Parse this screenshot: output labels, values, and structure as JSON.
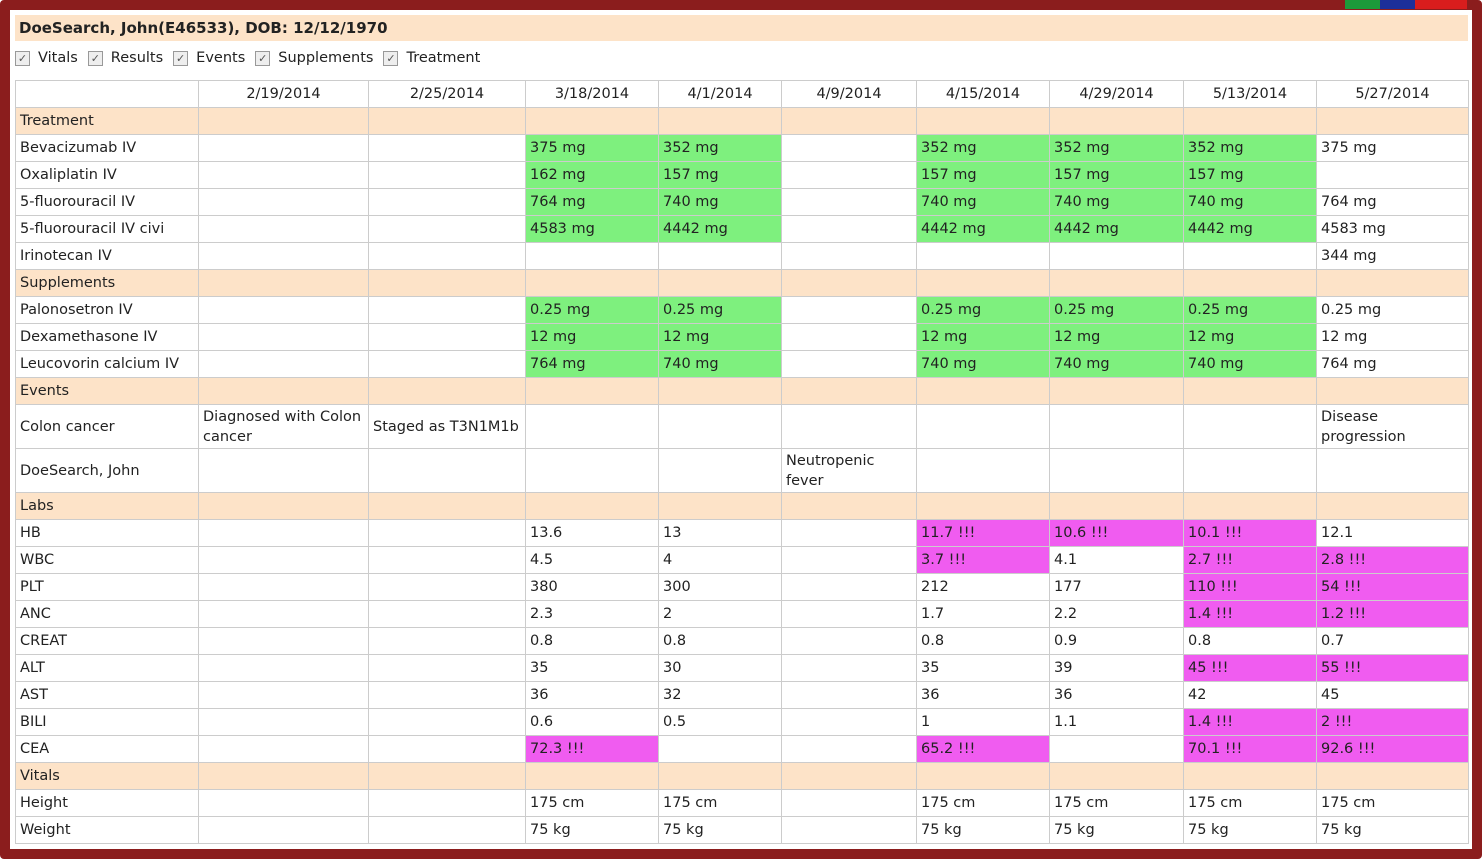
{
  "header": {
    "title": "DoeSearch, John(E46533), DOB: 12/12/1970"
  },
  "filters": [
    "Vitals",
    "Results",
    "Events",
    "Supplements",
    "Treatment"
  ],
  "table": {
    "columns": [
      "2/19/2014",
      "2/25/2014",
      "3/18/2014",
      "4/1/2014",
      "4/9/2014",
      "4/15/2014",
      "4/29/2014",
      "5/13/2014",
      "5/27/2014"
    ],
    "sections": [
      {
        "title": "Treatment",
        "rows": [
          {
            "label": "Bevacizumab IV",
            "cells": [
              null,
              null,
              "375 mg",
              "352 mg",
              null,
              "352 mg",
              "352 mg",
              "352 mg",
              "375 mg"
            ],
            "colors": [
              null,
              null,
              "#7ef07e",
              "#7ef07e",
              null,
              "#7ef07e",
              "#7ef07e",
              "#7ef07e",
              null
            ]
          },
          {
            "label": "Oxaliplatin IV",
            "cells": [
              null,
              null,
              "162 mg",
              "157 mg",
              null,
              "157 mg",
              "157 mg",
              "157 mg",
              null
            ],
            "colors": [
              null,
              null,
              "#7ef07e",
              "#7ef07e",
              null,
              "#7ef07e",
              "#7ef07e",
              "#7ef07e",
              null
            ]
          },
          {
            "label": "5-fluorouracil IV",
            "cells": [
              null,
              null,
              "764 mg",
              "740 mg",
              null,
              "740 mg",
              "740 mg",
              "740 mg",
              "764 mg"
            ],
            "colors": [
              null,
              null,
              "#7ef07e",
              "#7ef07e",
              null,
              "#7ef07e",
              "#7ef07e",
              "#7ef07e",
              null
            ]
          },
          {
            "label": "5-fluorouracil IV civi",
            "cells": [
              null,
              null,
              "4583 mg",
              "4442 mg",
              null,
              "4442 mg",
              "4442 mg",
              "4442 mg",
              "4583 mg"
            ],
            "colors": [
              null,
              null,
              "#7ef07e",
              "#7ef07e",
              null,
              "#7ef07e",
              "#7ef07e",
              "#7ef07e",
              null
            ]
          },
          {
            "label": "Irinotecan IV",
            "cells": [
              null,
              null,
              null,
              null,
              null,
              null,
              null,
              null,
              "344 mg"
            ],
            "colors": [
              null,
              null,
              null,
              null,
              null,
              null,
              null,
              null,
              null
            ]
          }
        ]
      },
      {
        "title": "Supplements",
        "rows": [
          {
            "label": "Palonosetron IV",
            "cells": [
              null,
              null,
              "0.25 mg",
              "0.25 mg",
              null,
              "0.25 mg",
              "0.25 mg",
              "0.25 mg",
              "0.25 mg"
            ],
            "colors": [
              null,
              null,
              "#7ef07e",
              "#7ef07e",
              null,
              "#7ef07e",
              "#7ef07e",
              "#7ef07e",
              null
            ]
          },
          {
            "label": "Dexamethasone IV",
            "cells": [
              null,
              null,
              "12 mg",
              "12 mg",
              null,
              "12 mg",
              "12 mg",
              "12 mg",
              "12 mg"
            ],
            "colors": [
              null,
              null,
              "#7ef07e",
              "#7ef07e",
              null,
              "#7ef07e",
              "#7ef07e",
              "#7ef07e",
              null
            ]
          },
          {
            "label": "Leucovorin calcium IV",
            "cells": [
              null,
              null,
              "764 mg",
              "740 mg",
              null,
              "740 mg",
              "740 mg",
              "740 mg",
              "764 mg"
            ],
            "colors": [
              null,
              null,
              "#7ef07e",
              "#7ef07e",
              null,
              "#7ef07e",
              "#7ef07e",
              "#7ef07e",
              null
            ]
          }
        ]
      },
      {
        "title": "Events",
        "rows": [
          {
            "label": "Colon cancer",
            "cells": [
              "Diagnosed with Colon cancer",
              "Staged as T3N1M1b",
              null,
              null,
              null,
              null,
              null,
              null,
              "Disease progression"
            ],
            "colors": [
              null,
              null,
              null,
              null,
              null,
              null,
              null,
              null,
              null
            ]
          },
          {
            "label": "DoeSearch, John",
            "cells": [
              null,
              null,
              null,
              null,
              "Neutropenic fever",
              null,
              null,
              null,
              null
            ],
            "colors": [
              null,
              null,
              null,
              null,
              null,
              null,
              null,
              null,
              null
            ]
          }
        ]
      },
      {
        "title": "Labs",
        "rows": [
          {
            "label": "HB",
            "cells": [
              null,
              null,
              "13.6",
              "13",
              null,
              "11.7 !!!",
              "10.6 !!!",
              "10.1 !!!",
              "12.1"
            ],
            "colors": [
              null,
              null,
              null,
              null,
              null,
              "#f05cf0",
              "#f05cf0",
              "#f05cf0",
              null
            ]
          },
          {
            "label": "WBC",
            "cells": [
              null,
              null,
              "4.5",
              "4",
              null,
              "3.7 !!!",
              "4.1",
              "2.7 !!!",
              "2.8 !!!"
            ],
            "colors": [
              null,
              null,
              null,
              null,
              null,
              "#f05cf0",
              null,
              "#f05cf0",
              "#f05cf0"
            ]
          },
          {
            "label": "PLT",
            "cells": [
              null,
              null,
              "380",
              "300",
              null,
              "212",
              "177",
              "110 !!!",
              "54 !!!"
            ],
            "colors": [
              null,
              null,
              null,
              null,
              null,
              null,
              null,
              "#f05cf0",
              "#f05cf0"
            ]
          },
          {
            "label": "ANC",
            "cells": [
              null,
              null,
              "2.3",
              "2",
              null,
              "1.7",
              "2.2",
              "1.4 !!!",
              "1.2 !!!"
            ],
            "colors": [
              null,
              null,
              null,
              null,
              null,
              null,
              null,
              "#f05cf0",
              "#f05cf0"
            ]
          },
          {
            "label": "CREAT",
            "cells": [
              null,
              null,
              "0.8",
              "0.8",
              null,
              "0.8",
              "0.9",
              "0.8",
              "0.7"
            ],
            "colors": [
              null,
              null,
              null,
              null,
              null,
              null,
              null,
              null,
              null
            ]
          },
          {
            "label": "ALT",
            "cells": [
              null,
              null,
              "35",
              "30",
              null,
              "35",
              "39",
              "45 !!!",
              "55 !!!"
            ],
            "colors": [
              null,
              null,
              null,
              null,
              null,
              null,
              null,
              "#f05cf0",
              "#f05cf0"
            ]
          },
          {
            "label": "AST",
            "cells": [
              null,
              null,
              "36",
              "32",
              null,
              "36",
              "36",
              "42",
              "45"
            ],
            "colors": [
              null,
              null,
              null,
              null,
              null,
              null,
              null,
              null,
              null
            ]
          },
          {
            "label": "BILI",
            "cells": [
              null,
              null,
              "0.6",
              "0.5",
              null,
              "1",
              "1.1",
              "1.4 !!!",
              "2 !!!"
            ],
            "colors": [
              null,
              null,
              null,
              null,
              null,
              null,
              null,
              "#f05cf0",
              "#f05cf0"
            ]
          },
          {
            "label": "CEA",
            "cells": [
              null,
              null,
              "72.3 !!!",
              null,
              null,
              "65.2 !!!",
              null,
              "70.1 !!!",
              "92.6 !!!"
            ],
            "colors": [
              null,
              null,
              "#f05cf0",
              null,
              null,
              "#f05cf0",
              null,
              "#f05cf0",
              "#f05cf0"
            ]
          }
        ]
      },
      {
        "title": "Vitals",
        "rows": [
          {
            "label": "Height",
            "cells": [
              null,
              null,
              "175 cm",
              "175 cm",
              null,
              "175 cm",
              "175 cm",
              "175 cm",
              "175 cm"
            ],
            "colors": [
              null,
              null,
              null,
              null,
              null,
              null,
              null,
              null,
              null
            ]
          },
          {
            "label": "Weight",
            "cells": [
              null,
              null,
              "75 kg",
              "75 kg",
              null,
              "75 kg",
              "75 kg",
              "75 kg",
              "75 kg"
            ],
            "colors": [
              null,
              null,
              null,
              null,
              null,
              null,
              null,
              null,
              null
            ]
          }
        ]
      }
    ]
  }
}
